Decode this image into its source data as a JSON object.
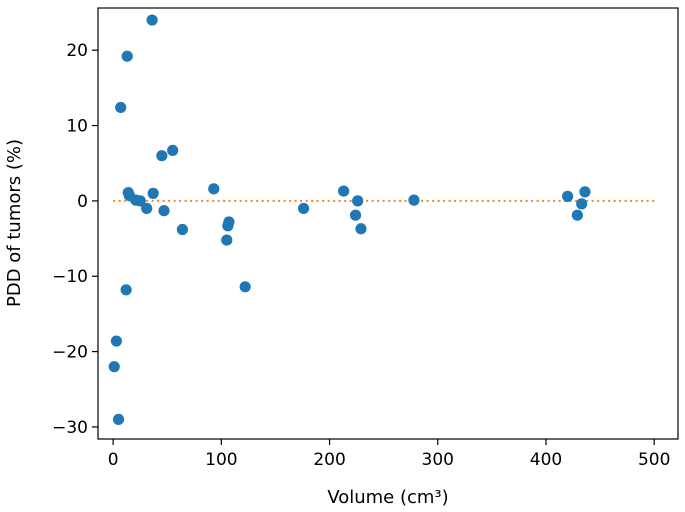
{
  "chart_data": {
    "type": "scatter",
    "title": "",
    "xlabel": "Volume (cm³)",
    "ylabel": "PDD of tumors (%)",
    "xlim": [
      -14,
      522
    ],
    "ylim": [
      -31.6,
      25.6
    ],
    "xticks": [
      0,
      100,
      200,
      300,
      400,
      500
    ],
    "yticks": [
      -30,
      -20,
      -10,
      0,
      10,
      20
    ],
    "grid": false,
    "legend": "none",
    "marker_color": "#1f77b4",
    "reference_line": {
      "y": 0,
      "x_range": [
        0,
        500
      ],
      "style": "dotted",
      "color": "#ff7f0e"
    },
    "points": [
      {
        "x": 1,
        "y": -22.0
      },
      {
        "x": 3,
        "y": -18.6
      },
      {
        "x": 5,
        "y": -29.0
      },
      {
        "x": 7,
        "y": 12.4
      },
      {
        "x": 12,
        "y": -11.8
      },
      {
        "x": 13,
        "y": 19.2
      },
      {
        "x": 14,
        "y": 1.1
      },
      {
        "x": 15,
        "y": 0.7
      },
      {
        "x": 21,
        "y": 0.1
      },
      {
        "x": 25,
        "y": 0.0
      },
      {
        "x": 31,
        "y": -1.0
      },
      {
        "x": 36,
        "y": 24.0
      },
      {
        "x": 37,
        "y": 1.0
      },
      {
        "x": 45,
        "y": 6.0
      },
      {
        "x": 47,
        "y": -1.3
      },
      {
        "x": 55,
        "y": 6.7
      },
      {
        "x": 64,
        "y": -3.8
      },
      {
        "x": 93,
        "y": 1.6
      },
      {
        "x": 105,
        "y": -5.2
      },
      {
        "x": 106,
        "y": -3.3
      },
      {
        "x": 107,
        "y": -2.8
      },
      {
        "x": 122,
        "y": -11.4
      },
      {
        "x": 176,
        "y": -1.0
      },
      {
        "x": 213,
        "y": 1.3
      },
      {
        "x": 224,
        "y": -1.9
      },
      {
        "x": 226,
        "y": 0.0
      },
      {
        "x": 229,
        "y": -3.7
      },
      {
        "x": 278,
        "y": 0.1
      },
      {
        "x": 420,
        "y": 0.6
      },
      {
        "x": 429,
        "y": -1.9
      },
      {
        "x": 433,
        "y": -0.4
      },
      {
        "x": 436,
        "y": 1.2
      }
    ]
  }
}
